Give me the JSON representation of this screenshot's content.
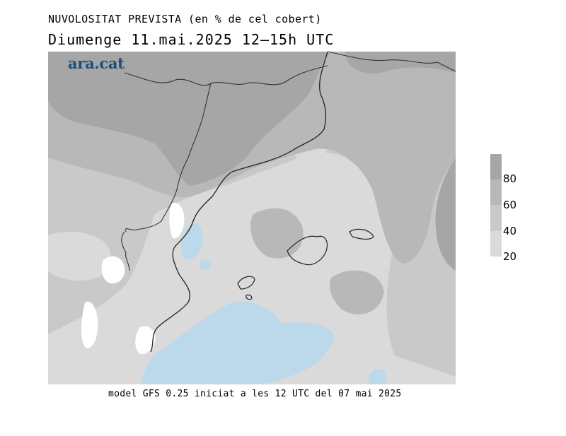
{
  "title": "NUVOLOSITAT PREVISTA (en % de cel cobert)",
  "subtitle": "Diumenge  11.mai.2025  12—15h  UTC",
  "logo": "ara.cat",
  "footer": "model GFS 0.25 iniciat a les 12 UTC del 07 mai 2025",
  "legend": {
    "ticks": [
      "80",
      "60",
      "40",
      "20"
    ],
    "levels": [
      {
        "min": 80,
        "max": 100,
        "color": "#a6a6a6"
      },
      {
        "min": 60,
        "max": 80,
        "color": "#b8b8b8"
      },
      {
        "min": 40,
        "max": 60,
        "color": "#c9c9c9"
      },
      {
        "min": 20,
        "max": 40,
        "color": "#dadada"
      }
    ]
  },
  "colors": {
    "sea_clear": "#bcd8eb",
    "clear_land": "#ffffff",
    "coast": "#222222",
    "border": "#333333"
  }
}
